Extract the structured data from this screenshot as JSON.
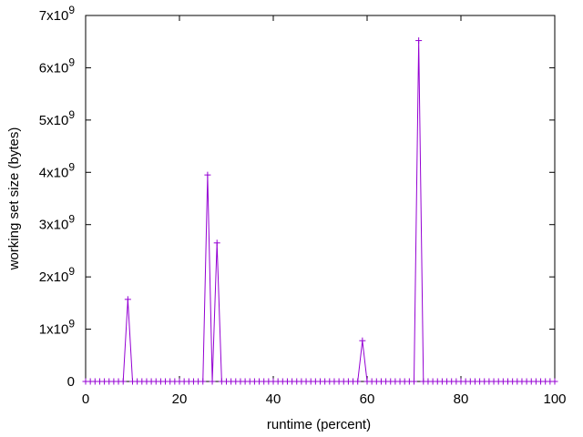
{
  "chart_data": {
    "type": "line",
    "title": "",
    "xlabel": "runtime (percent)",
    "ylabel": "working set size (bytes)",
    "xlim": [
      0,
      100
    ],
    "ylim": [
      0,
      7000000000
    ],
    "grid": false,
    "legend": "none",
    "line_color": "#9400d3",
    "marker": "+",
    "x_ticks": [
      {
        "value": 0,
        "label": "0"
      },
      {
        "value": 20,
        "label": "20"
      },
      {
        "value": 40,
        "label": "40"
      },
      {
        "value": 60,
        "label": "60"
      },
      {
        "value": 80,
        "label": "80"
      },
      {
        "value": 100,
        "label": "100"
      }
    ],
    "y_ticks": [
      {
        "value": 0,
        "mantissa": "0",
        "exp": ""
      },
      {
        "value": 1000000000,
        "mantissa": "1x10",
        "exp": "9"
      },
      {
        "value": 2000000000,
        "mantissa": "2x10",
        "exp": "9"
      },
      {
        "value": 3000000000,
        "mantissa": "3x10",
        "exp": "9"
      },
      {
        "value": 4000000000,
        "mantissa": "4x10",
        "exp": "9"
      },
      {
        "value": 5000000000,
        "mantissa": "5x10",
        "exp": "9"
      },
      {
        "value": 6000000000,
        "mantissa": "6x10",
        "exp": "9"
      },
      {
        "value": 7000000000,
        "mantissa": "7x10",
        "exp": "9"
      }
    ],
    "series": [
      {
        "x": [
          0,
          1,
          2,
          3,
          4,
          5,
          6,
          7,
          8,
          9,
          10,
          11,
          12,
          13,
          14,
          15,
          16,
          17,
          18,
          19,
          20,
          21,
          22,
          23,
          24,
          25,
          26,
          27,
          28,
          29,
          30,
          31,
          32,
          33,
          34,
          35,
          36,
          37,
          38,
          39,
          40,
          41,
          42,
          43,
          44,
          45,
          46,
          47,
          48,
          49,
          50,
          51,
          52,
          53,
          54,
          55,
          56,
          57,
          58,
          59,
          60,
          61,
          62,
          63,
          64,
          65,
          66,
          67,
          68,
          69,
          70,
          71,
          72,
          73,
          74,
          75,
          76,
          77,
          78,
          79,
          80,
          81,
          82,
          83,
          84,
          85,
          86,
          87,
          88,
          89,
          90,
          91,
          92,
          93,
          94,
          95,
          96,
          97,
          98,
          99,
          100
        ],
        "values": [
          0,
          0,
          0,
          0,
          0,
          0,
          0,
          0,
          0,
          1570000000,
          0,
          0,
          0,
          0,
          0,
          0,
          0,
          0,
          0,
          0,
          0,
          0,
          0,
          0,
          0,
          0,
          3950000000,
          0,
          2650000000,
          0,
          0,
          0,
          0,
          0,
          0,
          0,
          0,
          0,
          0,
          0,
          0,
          0,
          0,
          0,
          0,
          0,
          0,
          0,
          0,
          0,
          0,
          0,
          0,
          0,
          0,
          0,
          0,
          0,
          0,
          780000000,
          0,
          0,
          0,
          0,
          0,
          0,
          0,
          0,
          0,
          0,
          0,
          6520000000,
          0,
          0,
          0,
          0,
          0,
          0,
          0,
          0,
          0,
          0,
          0,
          0,
          0,
          0,
          0,
          0,
          0,
          0,
          0,
          0,
          0,
          0,
          0,
          0,
          0,
          0,
          0,
          0,
          0
        ]
      }
    ]
  }
}
